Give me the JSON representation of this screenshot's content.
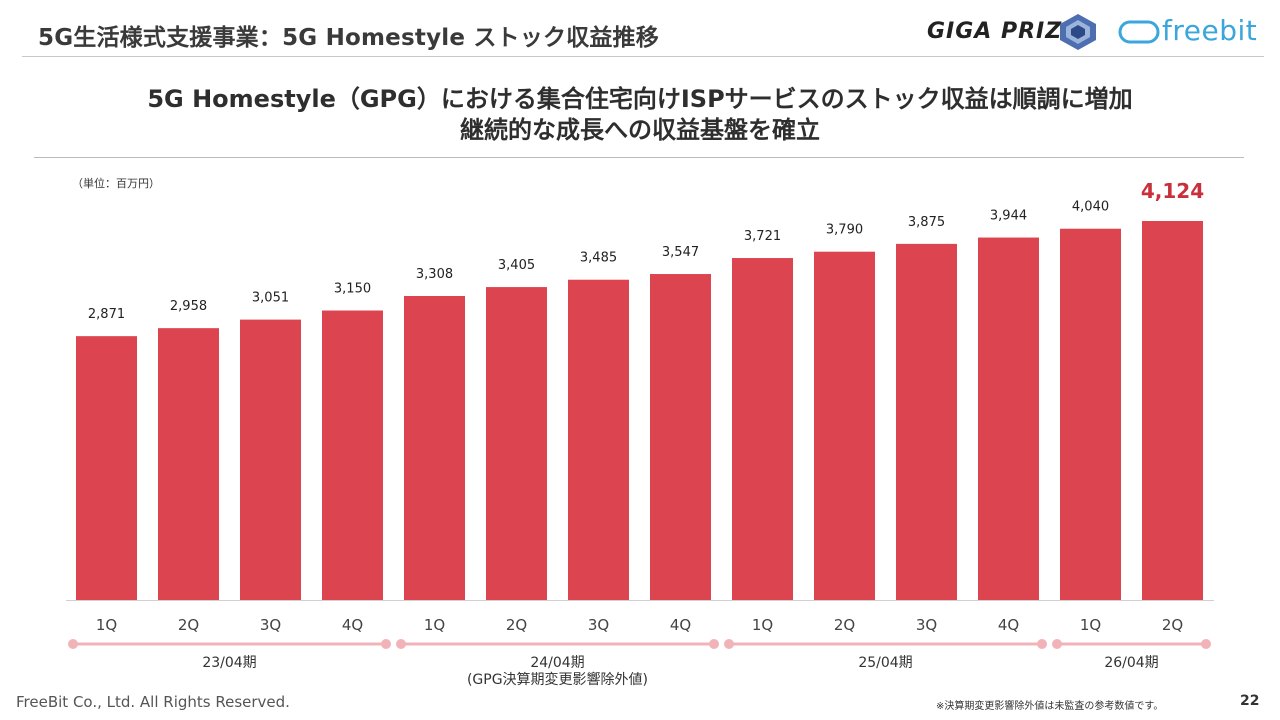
{
  "header": {
    "title": "5G生活様式支援事業：5G Homestyle ストック収益推移",
    "logo_giga": "GIGA PRIZE",
    "logo_freebit": "freebit"
  },
  "headline": {
    "line1": "5G Homestyle（GPG）における集合住宅向けISPサービスのストック収益は順調に増加",
    "line2": "継続的な成長への収益基盤を確立"
  },
  "chart_data": {
    "type": "bar",
    "unit_label": "（単位：百万円）",
    "categories": [
      "1Q",
      "2Q",
      "3Q",
      "4Q",
      "1Q",
      "2Q",
      "3Q",
      "4Q",
      "1Q",
      "2Q",
      "3Q",
      "4Q",
      "1Q",
      "2Q"
    ],
    "values": [
      2871,
      2958,
      3051,
      3150,
      3308,
      3405,
      3485,
      3547,
      3721,
      3790,
      3875,
      3944,
      4040,
      4124
    ],
    "value_labels": [
      "2,871",
      "2,958",
      "3,051",
      "3,150",
      "3,308",
      "3,405",
      "3,485",
      "3,547",
      "3,721",
      "3,790",
      "3,875",
      "3,944",
      "4,040",
      "4,124"
    ],
    "highlight_index": 13,
    "bar_color": "#dc444f",
    "highlight_label_color": "#c8313c",
    "ylim": [
      0,
      4124
    ],
    "periods": [
      {
        "label": "23/04期",
        "sublabel": "",
        "start": 0,
        "end": 3
      },
      {
        "label": "24/04期",
        "sublabel": "(GPG決算期変更影響除外値)",
        "start": 4,
        "end": 7
      },
      {
        "label": "25/04期",
        "sublabel": "",
        "start": 8,
        "end": 11
      },
      {
        "label": "26/04期",
        "sublabel": "",
        "start": 12,
        "end": 13
      }
    ],
    "period_line_color": "#f2b3b8"
  },
  "footer": {
    "copyright": "FreeBit Co., Ltd. All Rights Reserved.",
    "note": "※決算期変更影響除外値は未監査の参考数値です。",
    "page_number": "22"
  }
}
